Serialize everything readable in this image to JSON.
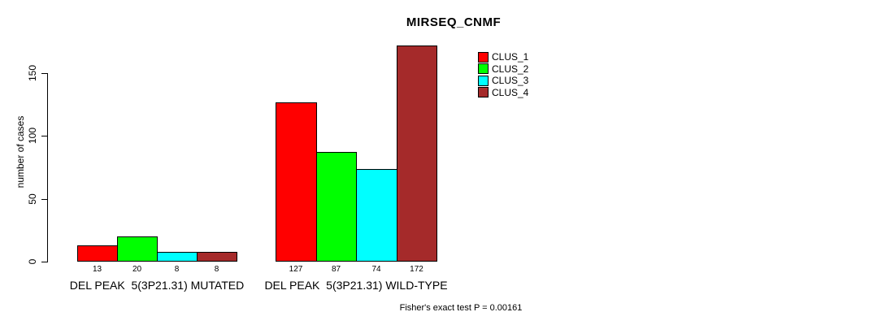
{
  "chart_data": {
    "type": "bar",
    "title": "MIRSEQ_CNMF",
    "ylabel": "number of cases",
    "xlabel": "",
    "yticks": [
      0,
      50,
      100,
      150
    ],
    "ylim": [
      0,
      172
    ],
    "grid": false,
    "legend_position": "top-right-inside",
    "categories": [
      "DEL PEAK  5(3P21.31) MUTATED",
      "DEL PEAK  5(3P21.31) WILD-TYPE"
    ],
    "series": [
      {
        "name": "CLUS_1",
        "color": "#FF0000",
        "values": [
          13,
          127
        ]
      },
      {
        "name": "CLUS_2",
        "color": "#00FF00",
        "values": [
          20,
          87
        ]
      },
      {
        "name": "CLUS_3",
        "color": "#00FFFF",
        "values": [
          8,
          74
        ]
      },
      {
        "name": "CLUS_4",
        "color": "#A52A2A",
        "values": [
          8,
          172
        ]
      }
    ],
    "bar_value_labels": [
      [
        13,
        20,
        8,
        8
      ],
      [
        127,
        87,
        74,
        172
      ]
    ],
    "annotation": "Fisher's exact test P = 0.00161"
  },
  "colors": {
    "background": "#FFFFFF",
    "axis": "#000000",
    "text": "#000000"
  }
}
